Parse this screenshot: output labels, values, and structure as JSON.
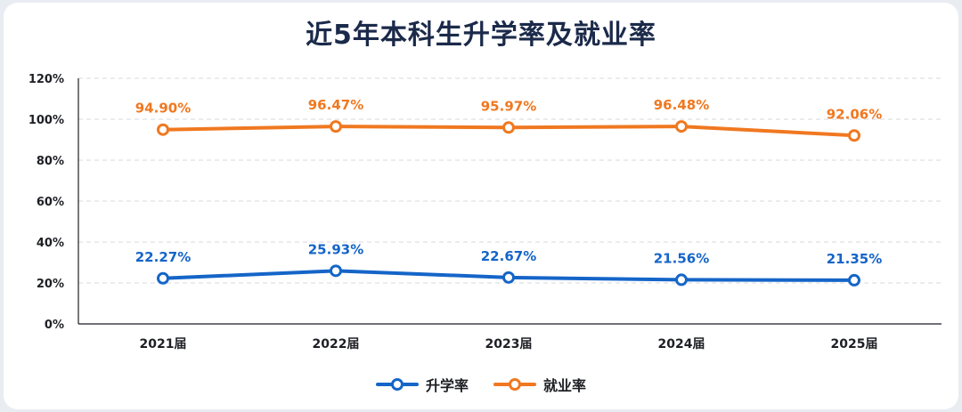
{
  "title": "近5年本科生升学率及就业率",
  "colors": {
    "further_study": "#1565c8",
    "employment": "#f07820",
    "grid": "#d5d9de",
    "axis": "#1d1f24"
  },
  "chart_data": {
    "type": "line",
    "title": "近5年本科生升学率及就业率",
    "xlabel": "",
    "ylabel": "",
    "categories": [
      "2021届",
      "2022届",
      "2023届",
      "2024届",
      "2025届"
    ],
    "ylim": [
      0,
      120
    ],
    "yticks": [
      0,
      20,
      40,
      60,
      80,
      100,
      120
    ],
    "ytick_labels": [
      "0%",
      "20%",
      "40%",
      "60%",
      "80%",
      "100%",
      "120%"
    ],
    "grid": true,
    "legend_position": "bottom-center",
    "series": [
      {
        "name": "升学率",
        "color": "#1565c8",
        "values": [
          22.27,
          25.93,
          22.67,
          21.56,
          21.35
        ],
        "labels": [
          "22.27%",
          "25.93%",
          "22.67%",
          "21.56%",
          "21.35%"
        ]
      },
      {
        "name": "就业率",
        "color": "#f07820",
        "values": [
          94.9,
          96.47,
          95.97,
          96.48,
          92.06
        ],
        "labels": [
          "94.90%",
          "96.47%",
          "95.97%",
          "96.48%",
          "92.06%"
        ]
      }
    ]
  }
}
